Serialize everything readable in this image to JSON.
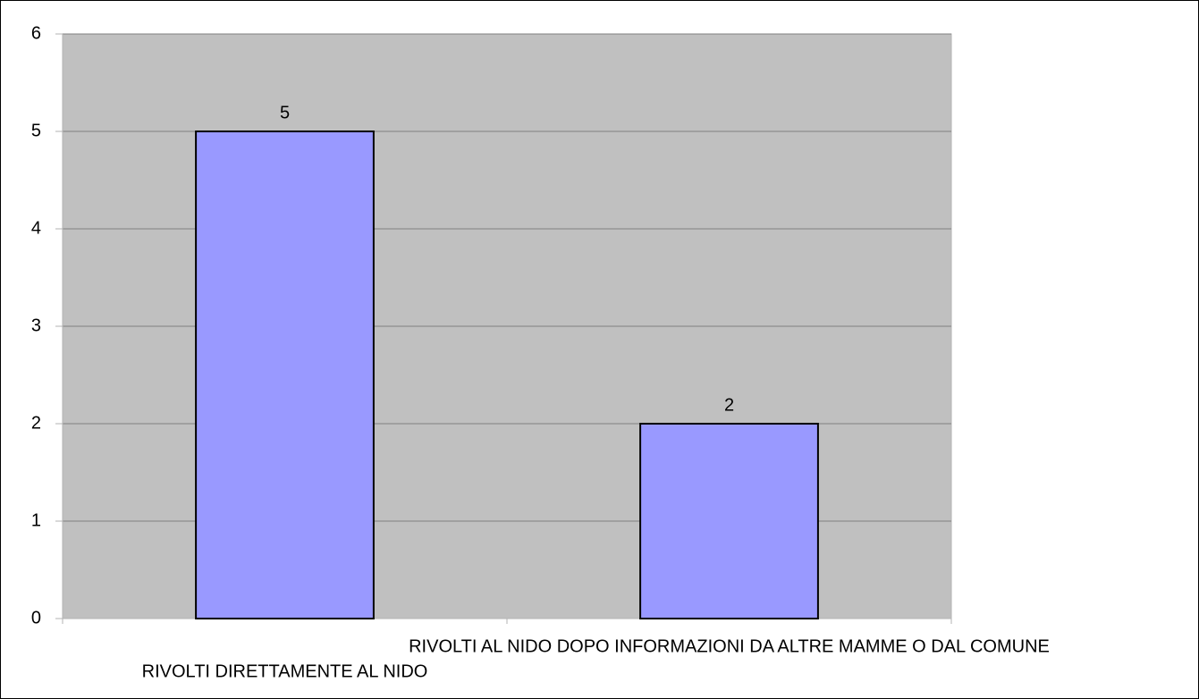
{
  "chart_data": {
    "type": "bar",
    "categories": [
      "RIVOLTI DIRETTAMENTE AL NIDO",
      "RIVOLTI AL NIDO DOPO INFORMAZIONI DA ALTRE MAMME O DAL COMUNE"
    ],
    "values": [
      5,
      2
    ],
    "color": "#9999ff",
    "ylim": [
      0,
      6
    ],
    "yticks": [
      0,
      1,
      2,
      3,
      4,
      5,
      6
    ],
    "grid": true
  }
}
